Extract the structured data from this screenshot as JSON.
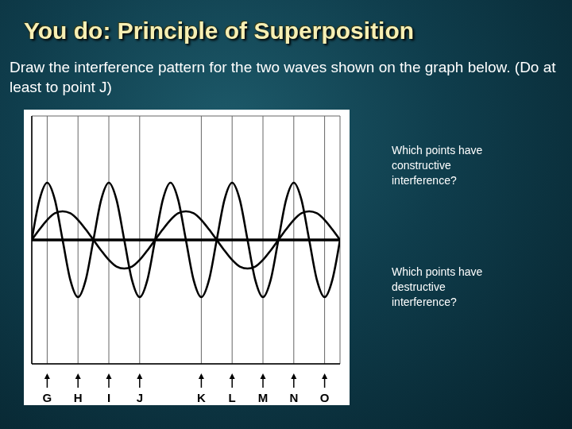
{
  "title": "You do:  Principle of Superposition",
  "instructions": "Draw the interference pattern for the two waves shown on the graph below.  (Do at least to point J)",
  "questions": [
    "Which points have constructive interference?",
    "Which points have destructive interference?"
  ],
  "chart_data": {
    "type": "line",
    "x": [
      -1,
      -0.5,
      0,
      0.5,
      1,
      1.5,
      2,
      2.5,
      3,
      3.5,
      4,
      4.5,
      5,
      5.5,
      6,
      6.5,
      7,
      7.5,
      8,
      8.5,
      9,
      9.5,
      10,
      10.5,
      11,
      11.5,
      12,
      12.5,
      13,
      13.5,
      14,
      14.5,
      15,
      15.5,
      16,
      16.5,
      17,
      17.5,
      18,
      18.5,
      19
    ],
    "series": [
      {
        "color": "#000000",
        "values": [
          0,
          4.2,
          6,
          4.2,
          0,
          -4.2,
          -6,
          -4.2,
          0,
          4.2,
          6,
          4.2,
          0,
          -4.2,
          -6,
          -4.2,
          0,
          4.2,
          6,
          4.2,
          0,
          -4.2,
          -6,
          -4.2,
          0,
          4.2,
          6,
          4.2,
          0,
          -4.2,
          -6,
          -4.2,
          0,
          4.2,
          6,
          4.2,
          0,
          -4.2,
          -6,
          -4.2,
          0
        ]
      },
      {
        "color": "#000000",
        "values": [
          0,
          1.1,
          2.1,
          2.8,
          3,
          2.8,
          2.1,
          1.1,
          0,
          -1.1,
          -2.1,
          -2.8,
          -3,
          -2.8,
          -2.1,
          -1.1,
          0,
          1.1,
          2.1,
          2.8,
          3,
          2.8,
          2.1,
          1.1,
          0,
          -1.1,
          -2.1,
          -2.8,
          -3,
          -2.8,
          -2.1,
          -1.1,
          0,
          1.1,
          2.1,
          2.8,
          3,
          2.8,
          2.1,
          1.1,
          0
        ]
      }
    ],
    "xlim": [
      -1,
      19
    ],
    "xticks": [
      {
        "value": 0,
        "label": "G"
      },
      {
        "value": 2,
        "label": "H"
      },
      {
        "value": 4,
        "label": "I"
      },
      {
        "value": 6,
        "label": "J"
      },
      {
        "value": 10,
        "label": "K"
      },
      {
        "value": 12,
        "label": "L"
      },
      {
        "value": 14,
        "label": "M"
      },
      {
        "value": 16,
        "label": "N"
      },
      {
        "value": 18,
        "label": "O"
      }
    ],
    "ylim": [
      -13,
      13
    ],
    "yticks": [
      -13,
      -12,
      -11,
      -10,
      -9,
      -8,
      -7,
      -6,
      -5,
      -4,
      -3,
      -2,
      -1,
      0,
      1,
      2,
      3,
      4,
      5,
      6,
      7,
      8,
      9,
      10,
      11,
      12,
      13
    ],
    "grid": true,
    "tick_labels": "x"
  }
}
